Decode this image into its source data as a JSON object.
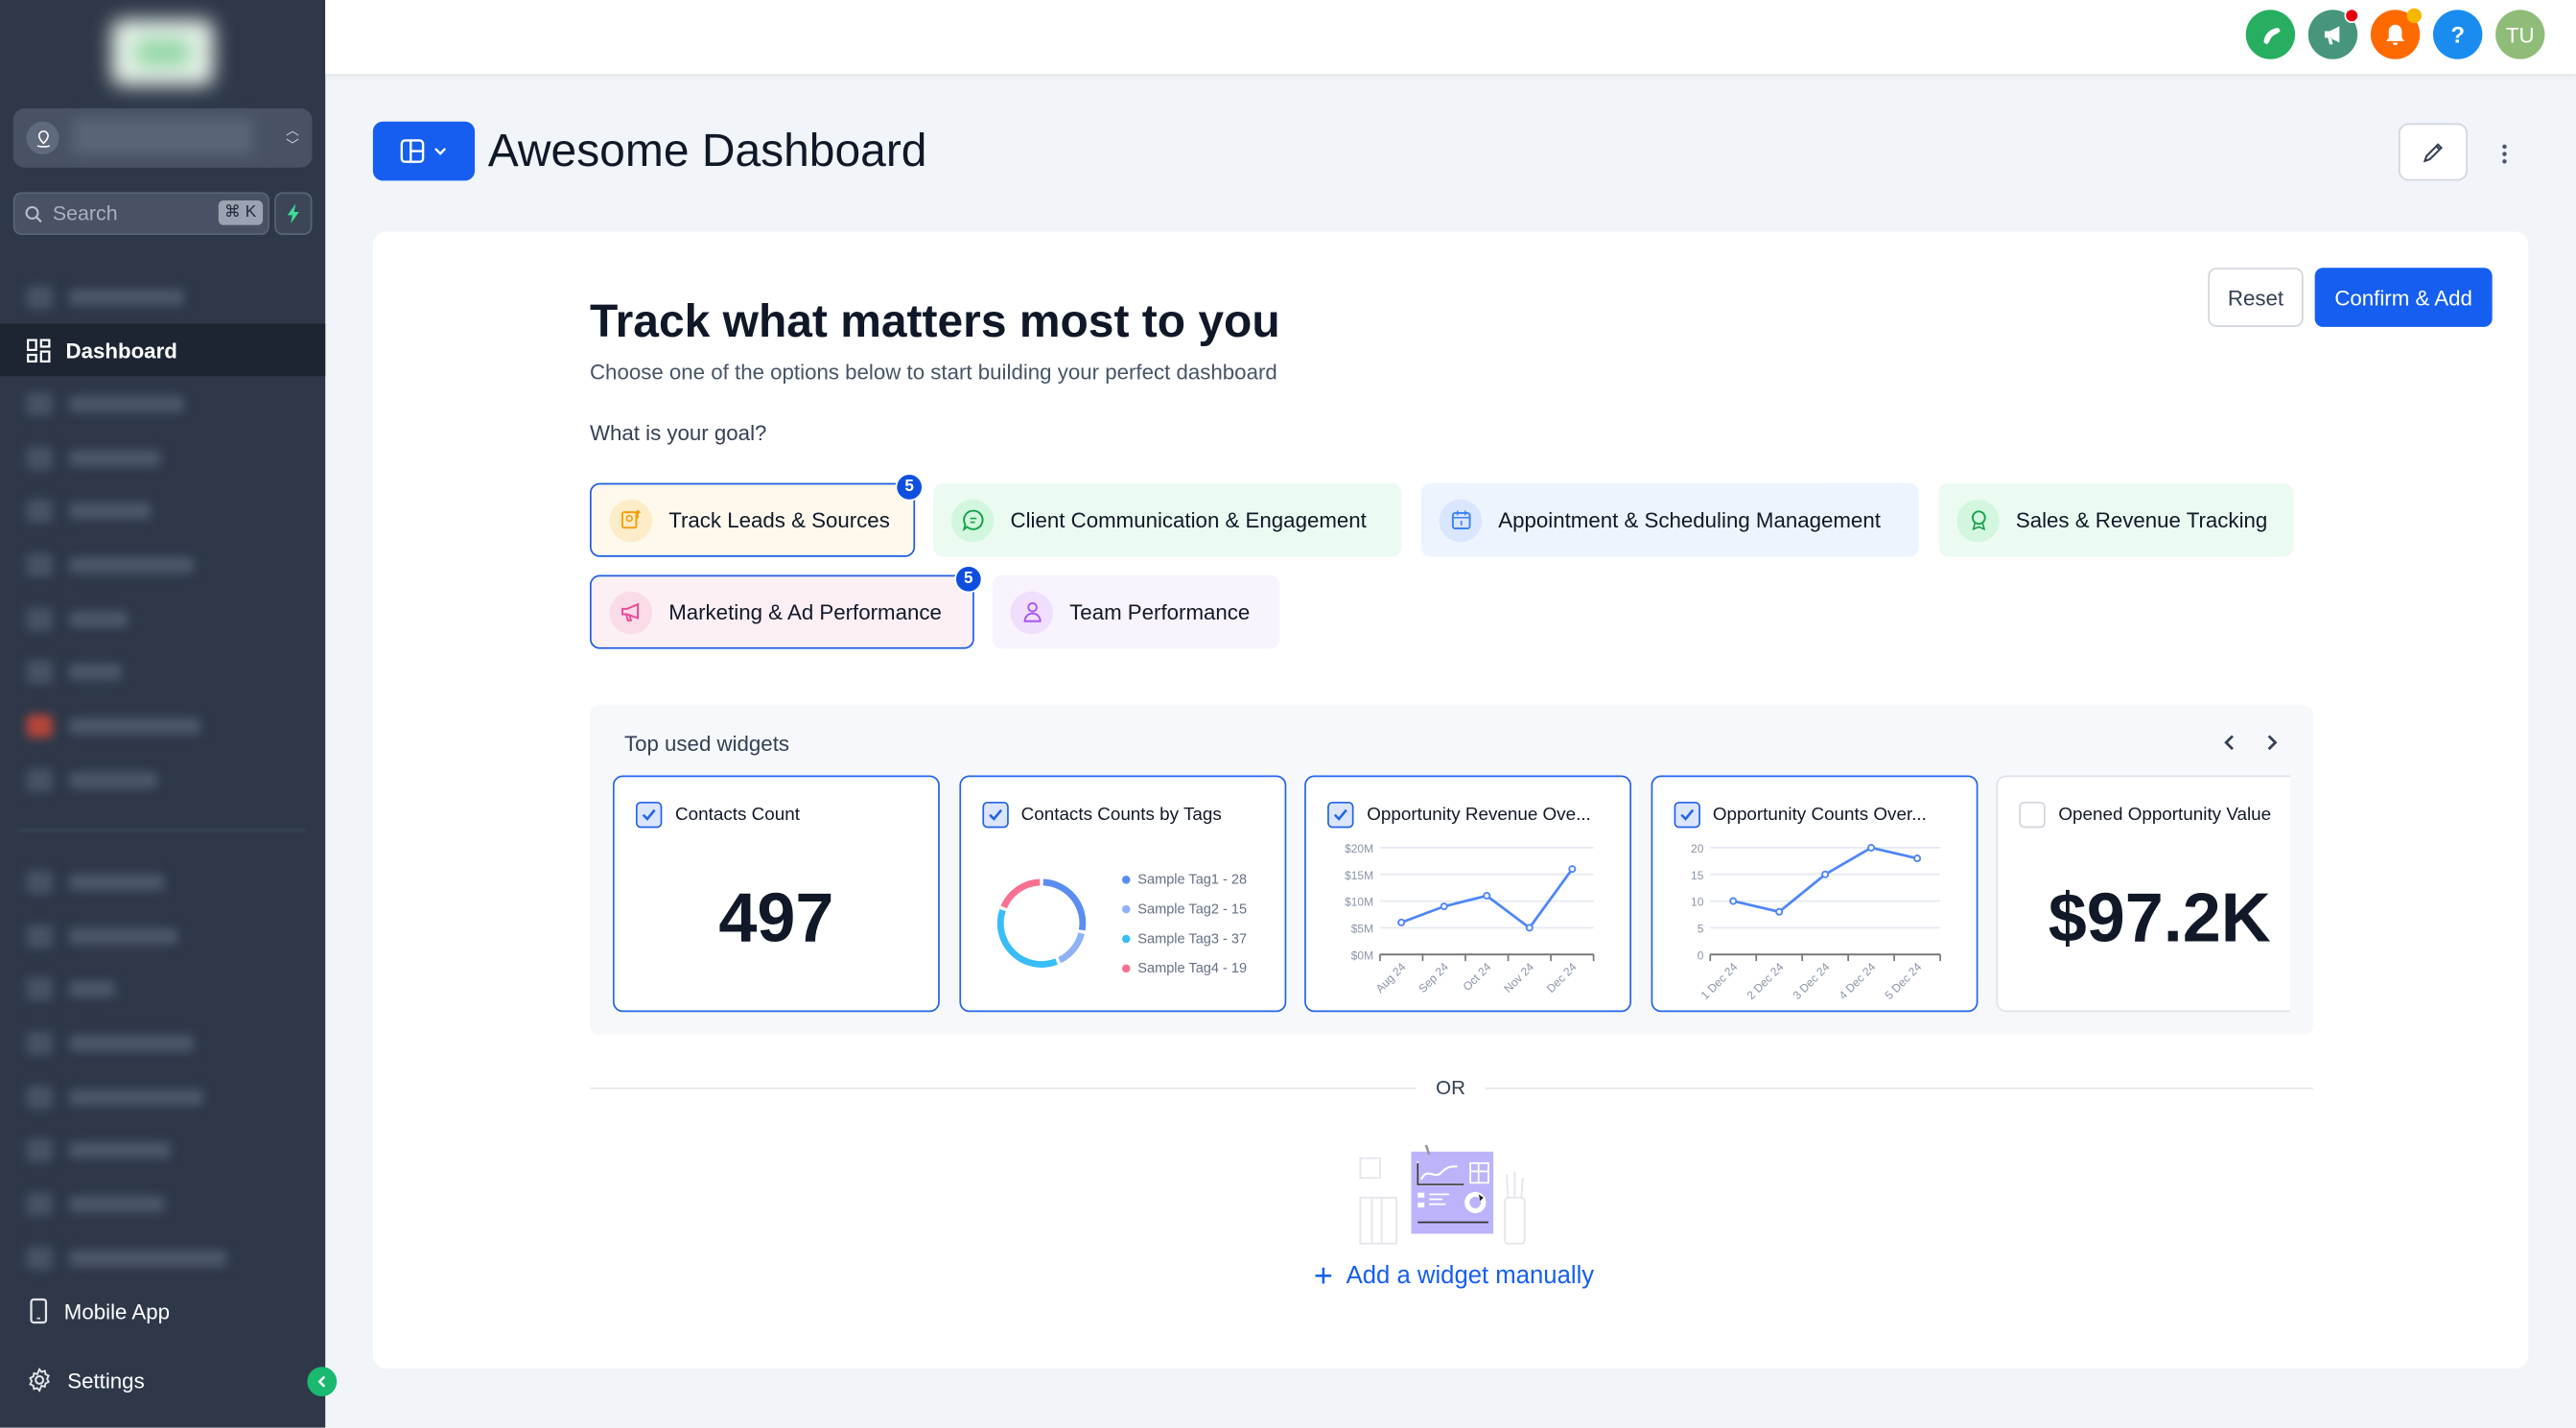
{
  "sidebar": {
    "search_placeholder": "Search",
    "search_shortcut": "⌘ K",
    "items": [
      {
        "label": "Dashboard",
        "icon": "dashboard-grid-icon",
        "active": true
      },
      {
        "label": "Mobile App",
        "icon": "mobile-icon"
      },
      {
        "label": "Settings",
        "icon": "gear-icon"
      }
    ]
  },
  "topbar": {
    "icons": [
      {
        "name": "phone-icon",
        "color": "#27ae60"
      },
      {
        "name": "megaphone-icon",
        "color": "#46957c",
        "dot": "#e5000f"
      },
      {
        "name": "bell-icon",
        "color": "#ff6a00",
        "dot": "#f6b700"
      },
      {
        "name": "help-icon",
        "color": "#1a8cf0"
      },
      {
        "name": "avatar",
        "color": "#8fbd79"
      }
    ],
    "help_glyph": "?",
    "avatar_initials": "TU"
  },
  "header": {
    "title": "Awesome Dashboard"
  },
  "main": {
    "heading": "Track what matters most to you",
    "subheading": "Choose one of the options below to start building your perfect dashboard",
    "goal_label": "What is your goal?",
    "reset_label": "Reset",
    "confirm_label": "Confirm & Add",
    "goals": [
      {
        "label": "Track Leads & Sources",
        "selected": true,
        "badge": "5",
        "bg": "#fef9ec",
        "icon_bg": "#fdecc8",
        "icon_color": "#f59e0b",
        "icon": "lead-upload-icon"
      },
      {
        "label": "Client Communication & Engagement",
        "selected": false,
        "bg": "#ecfbf1",
        "icon_bg": "#d3f6df",
        "icon_color": "#16a34a",
        "icon": "chat-icon"
      },
      {
        "label": "Appointment & Scheduling Management",
        "selected": false,
        "bg": "#eef4fe",
        "icon_bg": "#d9e6fd",
        "icon_color": "#3b82f6",
        "icon": "calendar-icon"
      },
      {
        "label": "Sales & Revenue Tracking",
        "selected": false,
        "bg": "#ecfbf1",
        "icon_bg": "#d3f6df",
        "icon_color": "#16a34a",
        "icon": "award-icon"
      },
      {
        "label": "Marketing & Ad Performance",
        "selected": true,
        "badge": "5",
        "bg": "#fcf0f5",
        "icon_bg": "#fadbe8",
        "icon_color": "#ec4899",
        "icon": "megaphone-icon"
      },
      {
        "label": "Team Performance",
        "selected": false,
        "bg": "#f9f3fd",
        "icon_bg": "#efdffc",
        "icon_color": "#a855f7",
        "icon": "user-icon"
      }
    ],
    "widgets_title": "Top used widgets",
    "widgets": [
      {
        "title": "Contacts Count",
        "checked": true,
        "value": "497"
      },
      {
        "title": "Contacts Counts by Tags",
        "checked": true
      },
      {
        "title": "Opportunity Revenue Ove...",
        "checked": true
      },
      {
        "title": "Opportunity Counts Over...",
        "checked": true
      },
      {
        "title": "Opened Opportunity Value",
        "checked": false,
        "value": "$97.2K"
      }
    ],
    "or_label": "OR",
    "add_manual_label": "Add a widget manually"
  },
  "chart_data": [
    {
      "type": "pie",
      "categories": [
        "Sample Tag1",
        "Sample Tag2",
        "Sample Tag3",
        "Sample Tag4"
      ],
      "values": [
        28,
        15,
        37,
        19
      ],
      "legend": [
        "Sample Tag1 - 28",
        "Sample Tag2 - 15",
        "Sample Tag3 - 37",
        "Sample Tag4 - 19"
      ],
      "colors": [
        "#5b8def",
        "#8fb2f7",
        "#38bdf8",
        "#f87191"
      ],
      "donut": true
    },
    {
      "type": "line",
      "categories": [
        "Aug 24",
        "Sep 24",
        "Oct 24",
        "Nov 24",
        "Dec 24"
      ],
      "values": [
        6,
        9,
        11,
        5,
        16
      ],
      "yticks": [
        "$0M",
        "$5M",
        "$10M",
        "$15M",
        "$20M"
      ],
      "ylim": [
        0,
        20
      ],
      "grid": true,
      "color": "#4f86f7"
    },
    {
      "type": "line",
      "categories": [
        "1 Dec 24",
        "2 Dec 24",
        "3 Dec 24",
        "4 Dec 24",
        "5 Dec 24"
      ],
      "values": [
        10,
        8,
        15,
        20,
        18
      ],
      "yticks": [
        "0",
        "5",
        "10",
        "15",
        "20"
      ],
      "ylim": [
        0,
        20
      ],
      "grid": true,
      "color": "#4f86f7"
    }
  ]
}
